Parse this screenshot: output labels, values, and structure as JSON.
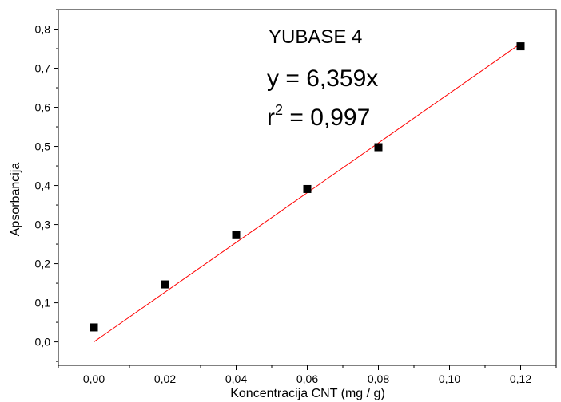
{
  "chart_data": {
    "type": "scatter",
    "title": "",
    "xlabel": "Koncentracija CNT (mg / g)",
    "ylabel": "Apsorbancija",
    "xlim": [
      -0.01,
      0.13
    ],
    "ylim": [
      -0.06,
      0.85
    ],
    "x_ticks": [
      "0,00",
      "0,02",
      "0,04",
      "0,06",
      "0,08",
      "0,10",
      "0,12"
    ],
    "y_ticks": [
      "0,0",
      "0,1",
      "0,2",
      "0,3",
      "0,4",
      "0,5",
      "0,6",
      "0,7",
      "0,8"
    ],
    "grid": false,
    "legend": "none",
    "series": [
      {
        "x": [
          0.0,
          0.02,
          0.04,
          0.06,
          0.08,
          0.12
        ],
        "y": [
          0.037,
          0.147,
          0.273,
          0.391,
          0.498,
          0.756
        ],
        "marker": "square",
        "color": "#000000"
      }
    ],
    "fit_line": {
      "slope": 6.359,
      "x_range": [
        0.0,
        0.12
      ],
      "color": "#ff0000"
    },
    "annotations": {
      "sample_label": "YUBASE 4",
      "equation": "y = 6,359x",
      "r_prefix": "r",
      "r_exponent": "2",
      "r_value": " = 0,997"
    }
  }
}
